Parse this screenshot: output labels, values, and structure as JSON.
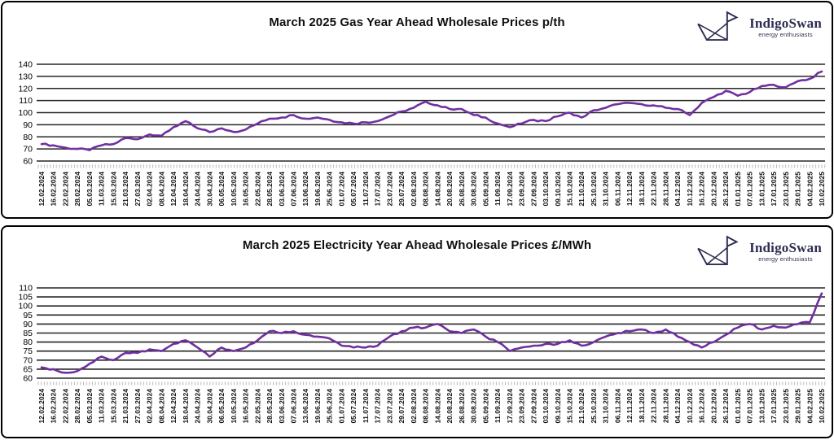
{
  "logo": {
    "name": "IndigoSwan",
    "tagline": "energy enthusiasts",
    "color": "#2d2d52"
  },
  "style": {
    "line_color": "#7030A0",
    "grid_color": "#262626",
    "tick_color": "#b9b9b9",
    "label_color": "#111111"
  },
  "chart_data": [
    {
      "id": "gas",
      "type": "line",
      "title": "March 2025 Gas Year Ahead Wholesale Prices p/th",
      "ylabel": "p/th",
      "legend": "none",
      "grid": "on",
      "line_color": "#7030A0",
      "ylim": [
        60,
        140
      ],
      "yticks": [
        140,
        130,
        120,
        110,
        100,
        90,
        80,
        70,
        60
      ],
      "categories": [
        "12.02.2024",
        "16.02.2024",
        "22.02.2024",
        "28.02.2024",
        "05.03.2024",
        "11.03.2024",
        "15.03.2024",
        "21.03.2024",
        "27.03.2024",
        "02.04.2024",
        "08.04.2024",
        "12.04.2024",
        "18.04.2024",
        "24.04.2024",
        "30.04.2024",
        "06.05.2024",
        "10.05.2024",
        "16.05.2024",
        "22.05.2024",
        "28.05.2024",
        "03.06.2024",
        "07.06.2024",
        "13.06.2024",
        "19.06.2024",
        "25.06.2024",
        "01.07.2024",
        "05.07.2024",
        "11.07.2024",
        "17.07.2024",
        "23.07.2024",
        "29.07.2024",
        "02.08.2024",
        "08.08.2024",
        "14.08.2024",
        "20.08.2024",
        "26.08.2024",
        "30.08.2024",
        "05.09.2024",
        "11.09.2024",
        "17.09.2024",
        "23.09.2024",
        "27.09.2024",
        "03.10.2024",
        "09.10.2024",
        "15.10.2024",
        "21.10.2024",
        "25.10.2024",
        "31.10.2024",
        "06.11.2024",
        "12.11.2024",
        "18.11.2024",
        "22.11.2024",
        "28.11.2024",
        "04.12.2024",
        "10.12.2024",
        "16.12.2024",
        "20.12.2024",
        "26.12.2024",
        "01.01.2025",
        "07.01.2025",
        "13.01.2025",
        "17.01.2025",
        "23.01.2025",
        "29.01.2025",
        "04.02.2025",
        "10.02.2025"
      ],
      "values": [
        74,
        73,
        71,
        70,
        69,
        73,
        74,
        79,
        78,
        82,
        81,
        88,
        93,
        87,
        84,
        87,
        84,
        86,
        91,
        95,
        96,
        98,
        95,
        96,
        94,
        92,
        91,
        92,
        93,
        97,
        101,
        104,
        109,
        106,
        103,
        103,
        98,
        96,
        91,
        88,
        91,
        94,
        93,
        97,
        100,
        96,
        102,
        104,
        107,
        108,
        107,
        106,
        104,
        103,
        98,
        108,
        113,
        118,
        114,
        117,
        122,
        123,
        121,
        126,
        128,
        134
      ]
    },
    {
      "id": "electricity",
      "type": "line",
      "title": "March 2025 Electricity Year Ahead Wholesale Prices £/MWh",
      "ylabel": "£/MWh",
      "legend": "none",
      "grid": "on",
      "line_color": "#7030A0",
      "ylim": [
        60,
        110
      ],
      "yticks": [
        110,
        105,
        100,
        95,
        90,
        85,
        80,
        75,
        70,
        65,
        60
      ],
      "categories": [
        "12.02.2024",
        "16.02.2024",
        "22.02.2024",
        "28.02.2024",
        "05.03.2024",
        "11.03.2024",
        "15.03.2024",
        "21.03.2024",
        "27.03.2024",
        "02.04.2024",
        "08.04.2024",
        "12.04.2024",
        "18.04.2024",
        "24.04.2024",
        "30.04.2024",
        "06.05.2024",
        "10.05.2024",
        "16.05.2024",
        "22.05.2024",
        "28.05.2024",
        "03.06.2024",
        "07.06.2024",
        "13.06.2024",
        "19.06.2024",
        "25.06.2024",
        "01.07.2024",
        "05.07.2024",
        "11.07.2024",
        "17.07.2024",
        "23.07.2024",
        "29.07.2024",
        "02.08.2024",
        "08.08.2024",
        "14.08.2024",
        "20.08.2024",
        "26.08.2024",
        "30.08.2024",
        "05.09.2024",
        "11.09.2024",
        "17.09.2024",
        "23.09.2024",
        "27.09.2024",
        "03.10.2024",
        "09.10.2024",
        "15.10.2024",
        "21.10.2024",
        "25.10.2024",
        "31.10.2024",
        "06.11.2024",
        "12.11.2024",
        "18.11.2024",
        "22.11.2024",
        "28.11.2024",
        "04.12.2024",
        "10.12.2024",
        "16.12.2024",
        "20.12.2024",
        "26.12.2024",
        "01.01.2025",
        "07.01.2025",
        "13.01.2025",
        "17.01.2025",
        "23.01.2025",
        "29.01.2025",
        "04.02.2025",
        "10.02.2025"
      ],
      "values": [
        66,
        65,
        63,
        64,
        68,
        72,
        70,
        74,
        74,
        76,
        75,
        79,
        81,
        77,
        72,
        77,
        75,
        77,
        81,
        86,
        85,
        86,
        84,
        83,
        82,
        78,
        77,
        77,
        78,
        83,
        86,
        88,
        88,
        90,
        86,
        85,
        87,
        83,
        80,
        75,
        77,
        78,
        79,
        79,
        81,
        78,
        80,
        83,
        85,
        86,
        87,
        85,
        87,
        83,
        80,
        77,
        80,
        84,
        88,
        90,
        87,
        89,
        88,
        90,
        91,
        107
      ]
    }
  ]
}
